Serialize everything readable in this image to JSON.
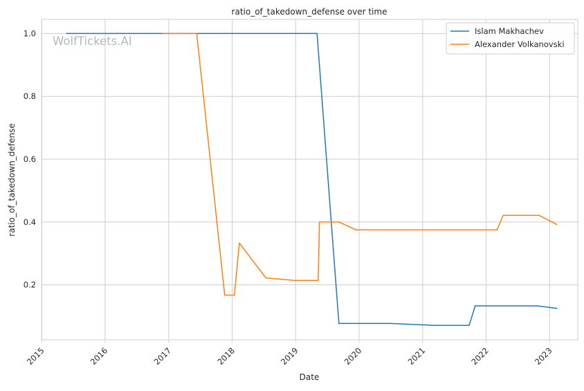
{
  "chart_data": {
    "type": "line",
    "title": "ratio_of_takedown_defense over time",
    "xlabel": "Date",
    "ylabel": "ratio_of_takedown_defense",
    "x_ticks": [
      "2015",
      "2016",
      "2017",
      "2018",
      "2019",
      "2020",
      "2021",
      "2022",
      "2023"
    ],
    "y_ticks": [
      "0.2",
      "0.4",
      "0.6",
      "0.8",
      "1.0"
    ],
    "xlim": [
      "2014-12-31",
      "2023-06-12"
    ],
    "ylim": [
      0.025,
      1.045
    ],
    "grid": true,
    "legend_position": "top-right",
    "watermark": "WolfTickets.AI",
    "series": [
      {
        "name": "Islam Makhachev",
        "color": "#1f77b4",
        "points": [
          {
            "date": "2015-05-23",
            "value": 1.0
          },
          {
            "date": "2019-05-04",
            "value": 1.0
          },
          {
            "date": "2019-09-07",
            "value": 0.077
          },
          {
            "date": "2020-07-01",
            "value": 0.077
          },
          {
            "date": "2021-03-06",
            "value": 0.071
          },
          {
            "date": "2021-09-25",
            "value": 0.071
          },
          {
            "date": "2021-10-30",
            "value": 0.133
          },
          {
            "date": "2022-10-22",
            "value": 0.133
          },
          {
            "date": "2023-02-12",
            "value": 0.125
          }
        ]
      },
      {
        "name": "Alexander Volkanovski",
        "color": "#ff7f0e",
        "points": [
          {
            "date": "2016-11-27",
            "value": 1.0
          },
          {
            "date": "2017-06-11",
            "value": 1.0
          },
          {
            "date": "2017-11-19",
            "value": 0.167
          },
          {
            "date": "2018-01-14",
            "value": 0.167
          },
          {
            "date": "2018-02-11",
            "value": 0.333
          },
          {
            "date": "2018-07-14",
            "value": 0.222
          },
          {
            "date": "2018-12-29",
            "value": 0.214
          },
          {
            "date": "2019-05-11",
            "value": 0.214
          },
          {
            "date": "2019-05-18",
            "value": 0.4
          },
          {
            "date": "2019-09-07",
            "value": 0.4
          },
          {
            "date": "2019-12-14",
            "value": 0.375
          },
          {
            "date": "2022-03-05",
            "value": 0.375
          },
          {
            "date": "2022-04-09",
            "value": 0.421
          },
          {
            "date": "2022-11-01",
            "value": 0.421
          },
          {
            "date": "2023-02-12",
            "value": 0.392
          }
        ]
      }
    ]
  }
}
